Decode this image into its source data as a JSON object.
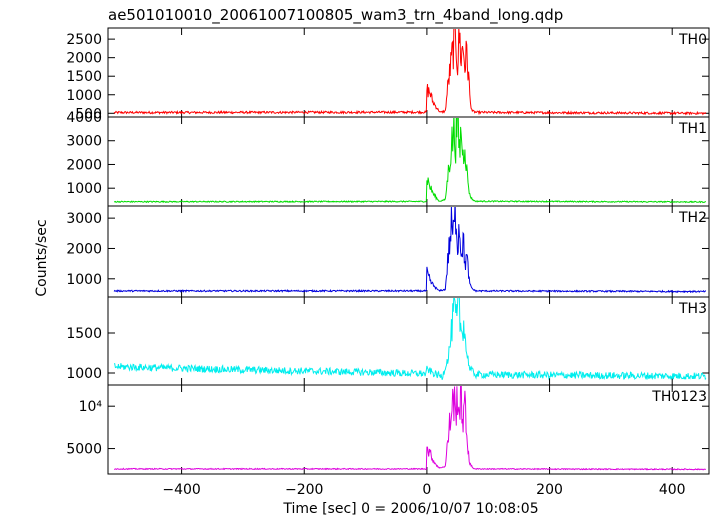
{
  "chart_data": {
    "type": "line",
    "title": "ae501010010_20061007100805_wam3_trn_4band_long.qdp",
    "xlabel": "Time [sec] 0 = 2006/10/07 10:08:05",
    "ylabel": "Counts/sec",
    "xlim": [
      -520,
      460
    ],
    "x_ticks": [
      -400,
      -200,
      0,
      200,
      400
    ],
    "x_tick_labels": [
      "−400",
      "−200",
      "0",
      "200",
      "400"
    ],
    "grid": false,
    "panels": [
      {
        "name": "TH0",
        "color": "#ff0000",
        "ylim": [
          400,
          2800
        ],
        "yticks": [
          500,
          1000,
          1500,
          2000,
          2500
        ],
        "ytick_labels": [
          "500",
          "1000",
          "1500",
          "2000",
          "2500"
        ],
        "baseline": 520,
        "noise": 30,
        "profile": [
          [
            -510,
            520
          ],
          [
            -1,
            530
          ],
          [
            0,
            1150
          ],
          [
            5,
            1050
          ],
          [
            10,
            800
          ],
          [
            16,
            650
          ],
          [
            22,
            520
          ],
          [
            30,
            560
          ],
          [
            35,
            1350
          ],
          [
            40,
            1900
          ],
          [
            44,
            2400
          ],
          [
            47,
            2700
          ],
          [
            50,
            1800
          ],
          [
            53,
            2600
          ],
          [
            56,
            2000
          ],
          [
            59,
            2300
          ],
          [
            62,
            1800
          ],
          [
            65,
            2100
          ],
          [
            68,
            1500
          ],
          [
            71,
            760
          ],
          [
            74,
            560
          ],
          [
            80,
            525
          ],
          [
            455,
            500
          ]
        ]
      },
      {
        "name": "TH1",
        "color": "#00dd00",
        "ylim": [
          250,
          4000
        ],
        "yticks": [
          1000,
          2000,
          3000,
          4000
        ],
        "ytick_labels": [
          "1000",
          "2000",
          "3000",
          "4000"
        ],
        "baseline": 430,
        "noise": 25,
        "profile": [
          [
            -510,
            430
          ],
          [
            -1,
            440
          ],
          [
            0,
            1450
          ],
          [
            6,
            1000
          ],
          [
            12,
            700
          ],
          [
            20,
            450
          ],
          [
            30,
            520
          ],
          [
            35,
            1700
          ],
          [
            40,
            2800
          ],
          [
            44,
            3400
          ],
          [
            47,
            2900
          ],
          [
            50,
            3900
          ],
          [
            53,
            2600
          ],
          [
            56,
            3400
          ],
          [
            59,
            2300
          ],
          [
            62,
            3100
          ],
          [
            65,
            1700
          ],
          [
            70,
            700
          ],
          [
            75,
            500
          ],
          [
            80,
            450
          ],
          [
            455,
            420
          ]
        ]
      },
      {
        "name": "TH2",
        "color": "#0000dd",
        "ylim": [
          400,
          3400
        ],
        "yticks": [
          1000,
          2000,
          3000
        ],
        "ytick_labels": [
          "1000",
          "2000",
          "3000"
        ],
        "baseline": 600,
        "noise": 25,
        "profile": [
          [
            -510,
            600
          ],
          [
            -1,
            600
          ],
          [
            0,
            1200
          ],
          [
            6,
            900
          ],
          [
            12,
            750
          ],
          [
            20,
            600
          ],
          [
            30,
            650
          ],
          [
            35,
            1800
          ],
          [
            40,
            2700
          ],
          [
            44,
            2500
          ],
          [
            47,
            3300
          ],
          [
            50,
            2200
          ],
          [
            53,
            2800
          ],
          [
            56,
            1900
          ],
          [
            59,
            2300
          ],
          [
            62,
            1500
          ],
          [
            65,
            1700
          ],
          [
            70,
            800
          ],
          [
            75,
            650
          ],
          [
            80,
            600
          ],
          [
            455,
            580
          ]
        ]
      },
      {
        "name": "TH3",
        "color": "#00eeee",
        "ylim": [
          850,
          1950
        ],
        "yticks": [
          1000,
          1500
        ],
        "ytick_labels": [
          "1000",
          "1500"
        ],
        "baseline": 1000,
        "noise": 45,
        "profile": [
          [
            -510,
            1080
          ],
          [
            -300,
            1040
          ],
          [
            -100,
            1010
          ],
          [
            -1,
            990
          ],
          [
            0,
            1050
          ],
          [
            10,
            1000
          ],
          [
            25,
            950
          ],
          [
            35,
            1200
          ],
          [
            40,
            1500
          ],
          [
            44,
            1800
          ],
          [
            48,
            1650
          ],
          [
            52,
            1850
          ],
          [
            56,
            1500
          ],
          [
            60,
            1650
          ],
          [
            64,
            1300
          ],
          [
            70,
            1050
          ],
          [
            80,
            980
          ],
          [
            455,
            960
          ]
        ]
      },
      {
        "name": "TH0123",
        "color": "#dd00dd",
        "ylim": [
          2000,
          12500
        ],
        "yticks": [
          5000,
          10000
        ],
        "ytick_labels": [
          "5000",
          "10⁴"
        ],
        "baseline": 2600,
        "noise": 60,
        "profile": [
          [
            -510,
            2600
          ],
          [
            -1,
            2600
          ],
          [
            0,
            5000
          ],
          [
            6,
            4300
          ],
          [
            12,
            3400
          ],
          [
            20,
            2700
          ],
          [
            30,
            2900
          ],
          [
            35,
            6500
          ],
          [
            40,
            9500
          ],
          [
            44,
            11000
          ],
          [
            47,
            8500
          ],
          [
            50,
            12000
          ],
          [
            53,
            9000
          ],
          [
            56,
            11000
          ],
          [
            59,
            8500
          ],
          [
            62,
            9800
          ],
          [
            65,
            6500
          ],
          [
            70,
            3200
          ],
          [
            75,
            2700
          ],
          [
            80,
            2600
          ],
          [
            455,
            2550
          ]
        ]
      }
    ]
  }
}
